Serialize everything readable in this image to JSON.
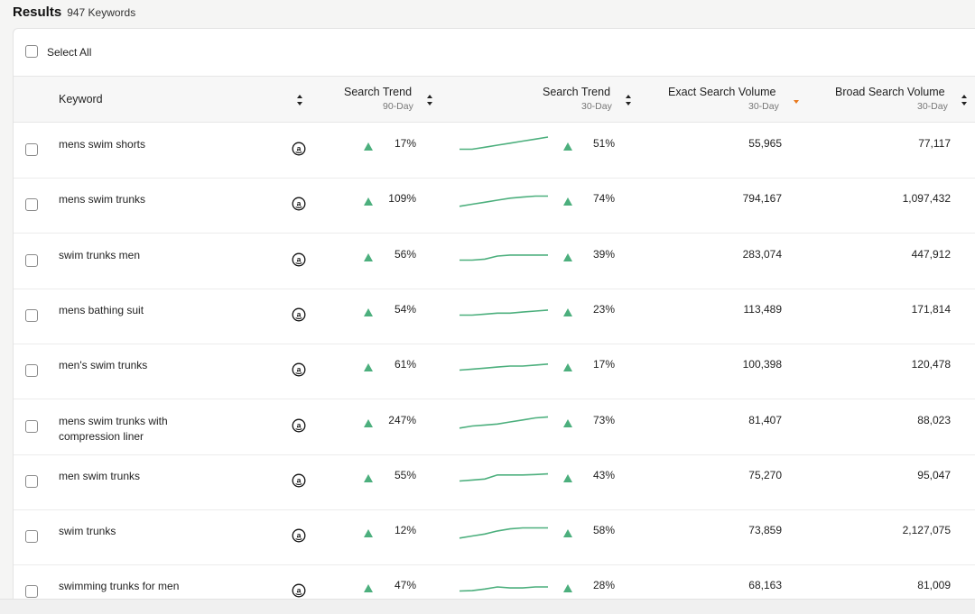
{
  "header": {
    "title": "Results",
    "count": "947 Keywords"
  },
  "select_all_label": "Select All",
  "columns": {
    "keyword": "Keyword",
    "trend90": {
      "label": "Search Trend",
      "sub": "90-Day"
    },
    "trend30": {
      "label": "Search Trend",
      "sub": "30-Day"
    },
    "exact": {
      "label": "Exact Search Volume",
      "sub": "30-Day"
    },
    "broad": {
      "label": "Broad Search Volume",
      "sub": "30-Day"
    }
  },
  "colors": {
    "up": "#4caf7d",
    "sort_active": "#e8791e",
    "spark": "#4caf7d"
  },
  "rows": [
    {
      "keyword": "mens swim shorts",
      "trend90": "17%",
      "trend30": "51%",
      "exact": "55,965",
      "broad": "77,117",
      "spark": [
        10,
        10,
        11,
        12,
        13,
        14,
        15,
        16
      ]
    },
    {
      "keyword": "mens swim trunks",
      "trend90": "109%",
      "trend30": "74%",
      "exact": "794,167",
      "broad": "1,097,432",
      "spark": [
        9,
        10,
        11,
        12,
        13,
        13.5,
        14,
        14
      ]
    },
    {
      "keyword": "swim trunks men",
      "trend90": "56%",
      "trend30": "39%",
      "exact": "283,074",
      "broad": "447,912",
      "spark": [
        10,
        10,
        10.5,
        12,
        12.5,
        12.5,
        12.5,
        12.5
      ]
    },
    {
      "keyword": "mens bathing suit",
      "trend90": "54%",
      "trend30": "23%",
      "exact": "113,489",
      "broad": "171,814",
      "spark": [
        10,
        10,
        10.5,
        11,
        11,
        11.5,
        12,
        12.5
      ]
    },
    {
      "keyword": "men's swim trunks",
      "trend90": "61%",
      "trend30": "17%",
      "exact": "100,398",
      "broad": "120,478",
      "spark": [
        10,
        10.5,
        11,
        11.5,
        12,
        12,
        12.5,
        13
      ]
    },
    {
      "keyword": "mens swim trunks with compression liner",
      "trend90": "247%",
      "trend30": "73%",
      "exact": "81,407",
      "broad": "88,023",
      "spark": [
        9,
        10,
        10.5,
        11,
        12,
        13,
        14,
        14.5
      ]
    },
    {
      "keyword": "men swim trunks",
      "trend90": "55%",
      "trend30": "43%",
      "exact": "75,270",
      "broad": "95,047",
      "spark": [
        10,
        10.5,
        11,
        13,
        13,
        13,
        13.2,
        13.5
      ]
    },
    {
      "keyword": "swim trunks",
      "trend90": "12%",
      "trend30": "58%",
      "exact": "73,859",
      "broad": "2,127,075",
      "spark": [
        9,
        10,
        11,
        12.5,
        13.5,
        14,
        14,
        14
      ]
    },
    {
      "keyword": "swimming trunks for men",
      "trend90": "47%",
      "trend30": "28%",
      "exact": "68,163",
      "broad": "81,009",
      "spark": [
        10,
        10.2,
        11,
        12,
        11.5,
        11.5,
        12,
        12
      ]
    }
  ]
}
